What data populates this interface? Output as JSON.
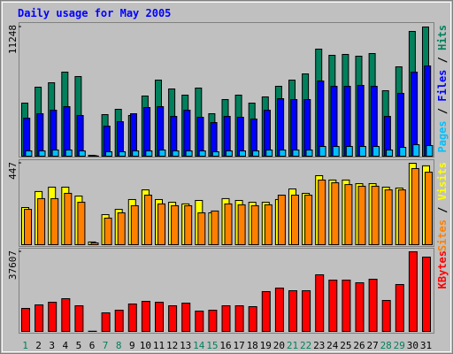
{
  "chart_data": [
    {
      "type": "bar",
      "title": "Daily usage for May 2005",
      "separator": " / ",
      "ylim": [
        0,
        11248
      ],
      "yticks": [
        11248
      ],
      "series": [
        {
          "name": "Hits",
          "color": "#00805c",
          "values": [
            4622,
            6009,
            6394,
            7319,
            6934,
            80,
            3621,
            4083,
            3544,
            5239,
            6625,
            5855,
            5316,
            5932,
            3698,
            4931,
            5316,
            4622,
            5162,
            6086,
            6625,
            7165,
            9322,
            8783,
            8860,
            8706,
            8937,
            5701,
            7781,
            10863,
            11248
          ]
        },
        {
          "name": "Files",
          "color": "#0000ff",
          "values": [
            3313,
            3698,
            4006,
            4314,
            3544,
            50,
            2619,
            3005,
            3698,
            4237,
            4314,
            3467,
            4006,
            3390,
            2928,
            3467,
            3390,
            3236,
            4006,
            5008,
            4931,
            4931,
            6548,
            6086,
            6086,
            6163,
            6086,
            3467,
            5470,
            7319,
            7858
          ]
        },
        {
          "name": "Pages",
          "color": "#00c0ff",
          "values": [
            462,
            462,
            539,
            539,
            462,
            15,
            385,
            385,
            462,
            462,
            539,
            462,
            462,
            462,
            385,
            462,
            462,
            462,
            539,
            539,
            539,
            539,
            847,
            847,
            847,
            847,
            847,
            539,
            770,
            1001,
            924
          ]
        }
      ]
    },
    {
      "type": "bar",
      "separator": " / ",
      "ylim": [
        0,
        447
      ],
      "yticks": [
        447
      ],
      "series": [
        {
          "name": "Visits",
          "color": "#ffff00",
          "values": [
            204,
            292,
            316,
            316,
            267,
            15,
            165,
            194,
            248,
            301,
            248,
            233,
            224,
            243,
            175,
            253,
            243,
            233,
            233,
            248,
            306,
            282,
            379,
            355,
            355,
            335,
            335,
            316,
            311,
            447,
            433
          ]
        },
        {
          "name": "Sites",
          "color": "#ff8000",
          "values": [
            194,
            253,
            253,
            282,
            233,
            10,
            146,
            175,
            214,
            272,
            224,
            214,
            214,
            175,
            185,
            224,
            219,
            214,
            219,
            272,
            272,
            272,
            355,
            340,
            330,
            321,
            321,
            301,
            301,
            418,
            398
          ]
        }
      ]
    },
    {
      "type": "bar",
      "ylim": [
        0,
        37607
      ],
      "yticks": [
        37607
      ],
      "categories": [
        "1",
        "2",
        "3",
        "4",
        "5",
        "6",
        "7",
        "8",
        "9",
        "10",
        "11",
        "12",
        "13",
        "14",
        "15",
        "16",
        "17",
        "18",
        "19",
        "20",
        "21",
        "22",
        "23",
        "24",
        "25",
        "26",
        "27",
        "28",
        "29",
        "30",
        "31"
      ],
      "category_colors": [
        "#00805c",
        "#000000",
        "#000000",
        "#000000",
        "#000000",
        "#000000",
        "#00805c",
        "#00805c",
        "#000000",
        "#000000",
        "#000000",
        "#000000",
        "#000000",
        "#00805c",
        "#00805c",
        "#000000",
        "#000000",
        "#000000",
        "#000000",
        "#000000",
        "#00805c",
        "#00805c",
        "#000000",
        "#000000",
        "#000000",
        "#000000",
        "#000000",
        "#00805c",
        "#00805c",
        "#000000",
        "#000000"
      ],
      "series": [
        {
          "name": "KBytes",
          "color": "#ff0000",
          "values": [
            10864,
            12536,
            13791,
            15463,
            12118,
            100,
            8776,
            10029,
            12954,
            14208,
            13791,
            12118,
            13373,
            9611,
            10029,
            12118,
            12118,
            11701,
            18805,
            20476,
            19222,
            19222,
            26744,
            24237,
            24237,
            22983,
            24655,
            14626,
            22147,
            37607,
            35100
          ]
        }
      ]
    }
  ]
}
